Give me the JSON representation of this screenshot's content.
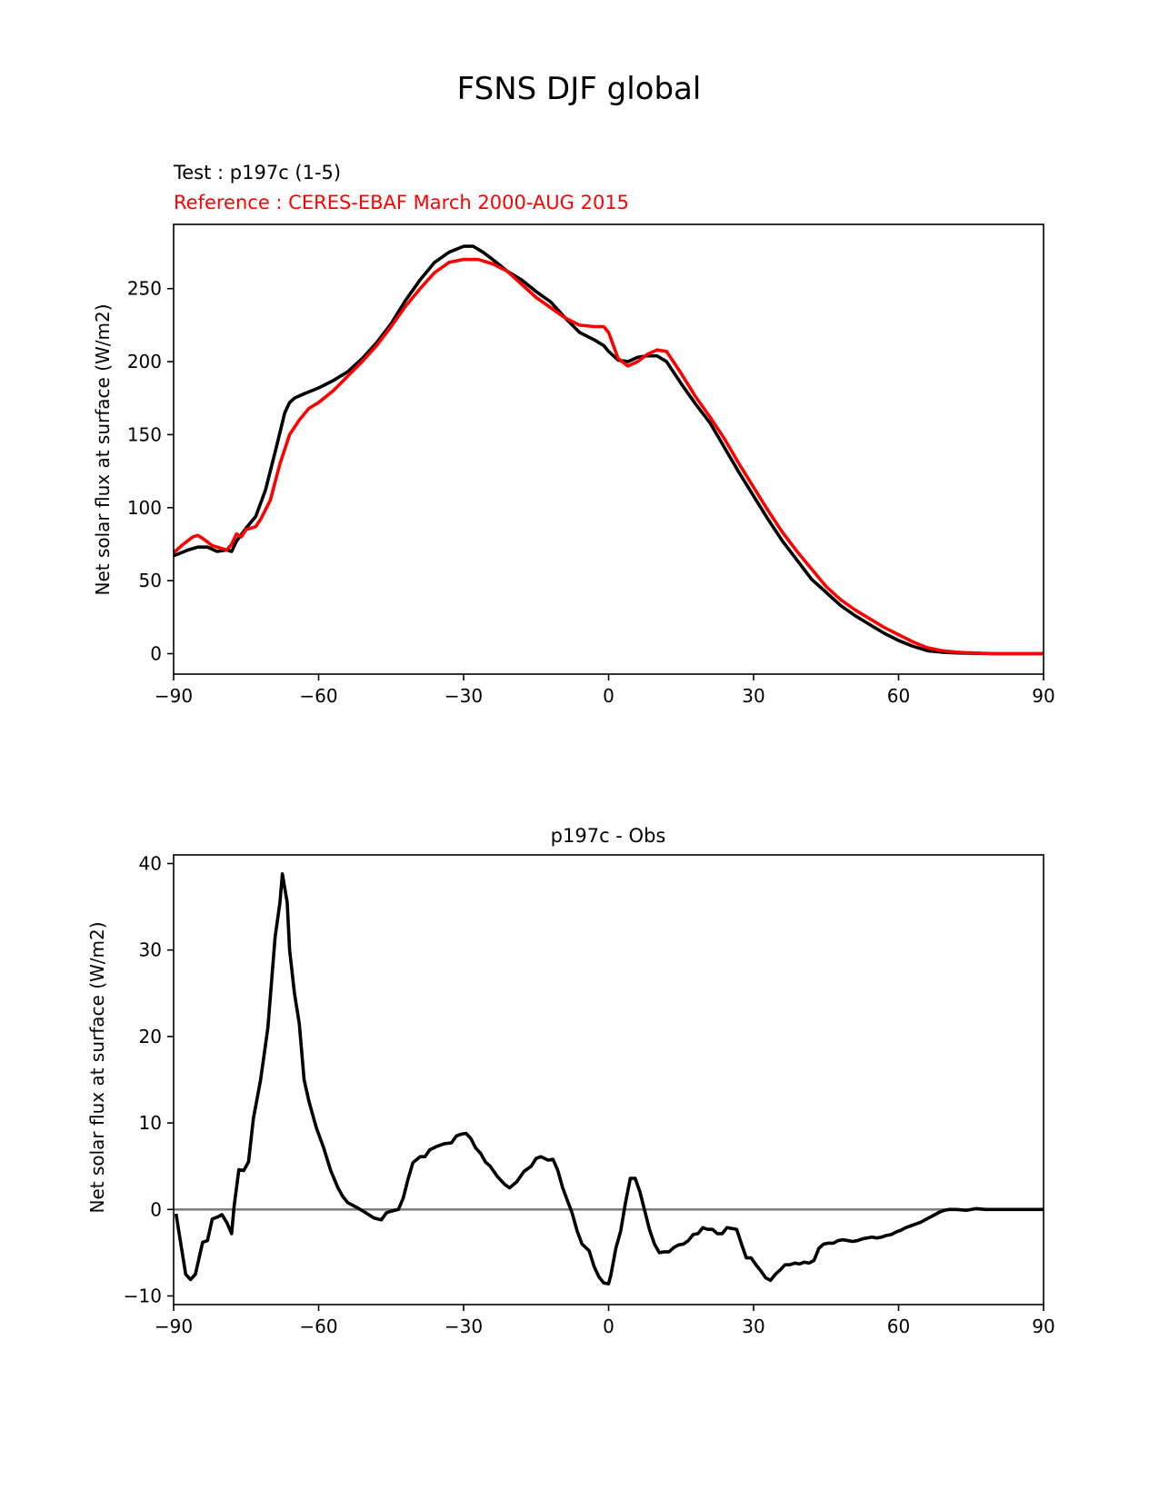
{
  "figure": {
    "suptitle": "FSNS DJF global"
  },
  "colors": {
    "test": "#000000",
    "reference": "#ff0000",
    "zero_line": "#808080",
    "axes": "#000000"
  },
  "chart_data": [
    {
      "type": "line",
      "title_left_1": "Test : p197c (1-5)",
      "title_left_2": "Reference : CERES-EBAF March 2000-AUG 2015",
      "xlabel": "",
      "ylabel": "Net solar flux at surface (W/m2)",
      "xlim": [
        -90,
        90
      ],
      "ylim": [
        -14,
        294
      ],
      "xticks": [
        -90,
        -60,
        -30,
        0,
        30,
        60,
        90
      ],
      "xtick_labels": [
        "−90",
        "−60",
        "−30",
        "0",
        "30",
        "60",
        "90"
      ],
      "yticks": [
        0,
        50,
        100,
        150,
        200,
        250
      ],
      "ytick_labels": [
        "0",
        "50",
        "100",
        "150",
        "200",
        "250"
      ],
      "grid": false,
      "series": [
        {
          "name": "Test : p197c (1-5)",
          "color": "#000000",
          "x": [
            -90,
            -87,
            -85,
            -83,
            -81,
            -79,
            -78,
            -77,
            -75,
            -73,
            -71,
            -69,
            -67,
            -66,
            -65,
            -63,
            -60,
            -57,
            -54,
            -51,
            -48,
            -45,
            -42,
            -39,
            -36,
            -33,
            -30,
            -28,
            -26,
            -24,
            -21,
            -18,
            -15,
            -12,
            -9,
            -6,
            -3,
            -1,
            0,
            2,
            4,
            6,
            8,
            10,
            12,
            15,
            18,
            21,
            24,
            27,
            30,
            33,
            36,
            39,
            42,
            45,
            48,
            51,
            54,
            57,
            60,
            63,
            66,
            69,
            72,
            75,
            80,
            85,
            90
          ],
          "y": [
            67,
            71,
            73,
            73,
            70,
            71,
            70,
            77,
            86,
            94,
            112,
            138,
            165,
            172,
            175,
            178,
            182,
            187,
            193,
            202,
            213,
            226,
            242,
            256,
            268,
            275,
            279,
            279,
            275,
            270,
            262,
            256,
            248,
            241,
            230,
            220,
            215,
            211,
            207,
            201,
            200,
            203,
            204,
            204,
            200,
            185,
            171,
            158,
            141,
            124,
            108,
            92,
            77,
            64,
            51,
            42,
            33,
            26,
            20,
            14,
            9,
            5,
            2,
            1,
            0.5,
            0.3,
            0,
            0,
            0
          ]
        },
        {
          "name": "Reference : CERES-EBAF March 2000-AUG 2015",
          "color": "#ff0000",
          "x": [
            -90,
            -88,
            -86,
            -85,
            -84,
            -82,
            -80,
            -79,
            -78,
            -77,
            -76,
            -75,
            -73,
            -72,
            -70,
            -68,
            -66,
            -64,
            -62,
            -60,
            -57,
            -54,
            -51,
            -48,
            -45,
            -42,
            -39,
            -36,
            -33,
            -30,
            -27,
            -24,
            -21,
            -18,
            -15,
            -12,
            -9,
            -6,
            -3,
            -1,
            0,
            2,
            4,
            6,
            8,
            10,
            12,
            15,
            18,
            21,
            24,
            27,
            30,
            33,
            36,
            39,
            42,
            45,
            48,
            51,
            54,
            57,
            60,
            63,
            66,
            69,
            72,
            75,
            80,
            85,
            90
          ],
          "y": [
            69,
            75,
            80,
            81,
            79,
            74,
            72,
            71,
            75,
            82,
            80,
            85,
            87,
            92,
            105,
            130,
            150,
            160,
            168,
            172,
            180,
            190,
            200,
            211,
            224,
            238,
            250,
            261,
            268,
            270,
            270,
            267,
            262,
            253,
            244,
            237,
            230,
            225,
            224,
            224,
            220,
            202,
            197,
            200,
            205,
            208,
            207,
            192,
            176,
            162,
            147,
            130,
            114,
            98,
            83,
            70,
            58,
            46,
            37,
            30,
            24,
            18,
            13,
            8,
            4,
            2,
            1,
            0.5,
            0,
            0,
            0
          ]
        }
      ]
    },
    {
      "type": "line",
      "title": "p197c - Obs",
      "xlabel": "",
      "ylabel": "Net solar flux at surface (W/m2)",
      "xlim": [
        -90,
        90
      ],
      "ylim": [
        -11,
        41
      ],
      "xticks": [
        -90,
        -60,
        -30,
        0,
        30,
        60,
        90
      ],
      "xtick_labels": [
        "−90",
        "−60",
        "−30",
        "0",
        "30",
        "60",
        "90"
      ],
      "yticks": [
        -10,
        0,
        10,
        20,
        30,
        40
      ],
      "ytick_labels": [
        "−10",
        "0",
        "10",
        "20",
        "30",
        "40"
      ],
      "grid": false,
      "zero_line": true,
      "series": [
        {
          "name": "p197c - Obs",
          "color": "#000000",
          "x": [
            -89.5,
            -88.5,
            -87.5,
            -86.5,
            -85.5,
            -84,
            -83,
            -82,
            -81,
            -80,
            -79,
            -78,
            -77.5,
            -76.5,
            -75.5,
            -74.5,
            -73.5,
            -72,
            -70.5,
            -69,
            -68,
            -67.5,
            -66.5,
            -66,
            -65,
            -64,
            -63,
            -62,
            -60.5,
            -59,
            -57.5,
            -56,
            -55,
            -54,
            -53,
            -52,
            -50.5,
            -48.5,
            -47,
            -46,
            -45,
            -43.5,
            -42.5,
            -41.5,
            -40.5,
            -39,
            -38,
            -37,
            -35.5,
            -34,
            -32.5,
            -31.5,
            -30.5,
            -29.5,
            -28.5,
            -27.5,
            -26.5,
            -25.5,
            -24.5,
            -23,
            -21.5,
            -20.5,
            -19,
            -17.5,
            -16,
            -15,
            -14,
            -12.5,
            -11.5,
            -10.5,
            -9.5,
            -8.5,
            -7.5,
            -6.5,
            -5.5,
            -4,
            -3,
            -2,
            -1,
            0,
            0.5,
            1.5,
            2.5,
            3.5,
            4.5,
            5.5,
            6.5,
            7.5,
            8.5,
            9.5,
            10.5,
            11.5,
            12.5,
            13.5,
            14.5,
            15.5,
            16.5,
            17.5,
            18.5,
            19.5,
            20.5,
            21.5,
            22.5,
            23.5,
            24.5,
            25.5,
            26.5,
            27.5,
            28.5,
            29.5,
            30.5,
            31.5,
            32.5,
            33.5,
            34.5,
            35.5,
            36.5,
            37.5,
            38.5,
            39.5,
            40.5,
            41.5,
            42.5,
            43.5,
            44.5,
            45.5,
            46.5,
            47.5,
            48.5,
            49.5,
            50.5,
            51.5,
            52.5,
            53.5,
            54.5,
            55.5,
            56.5,
            57.5,
            58.5,
            59.5,
            60.5,
            61.5,
            62.5,
            63.5,
            64.5,
            65.5,
            66.5,
            67.5,
            68.5,
            69.5,
            70.5,
            72,
            74,
            76,
            78,
            80,
            85,
            90
          ],
          "y": [
            -0.5,
            -4,
            -7.5,
            -8.1,
            -7.5,
            -3.8,
            -3.6,
            -1.1,
            -0.9,
            -0.6,
            -1.5,
            -2.8,
            0.3,
            4.6,
            4.5,
            5.5,
            10.5,
            15,
            21,
            31.5,
            35.5,
            38.8,
            35.5,
            30,
            25,
            21.5,
            15,
            12.5,
            9.5,
            7.2,
            4.5,
            2.5,
            1.5,
            0.8,
            0.5,
            0.2,
            -0.3,
            -1,
            -1.2,
            -0.4,
            -0.2,
            0,
            1.3,
            3.5,
            5.4,
            6.1,
            6.1,
            6.9,
            7.3,
            7.6,
            7.7,
            8.5,
            8.7,
            8.8,
            8.2,
            7.1,
            6.5,
            5.5,
            5,
            3.8,
            2.9,
            2.5,
            3.2,
            4.4,
            5,
            5.9,
            6.1,
            5.7,
            5.8,
            4.5,
            2.5,
            1,
            -0.5,
            -2.5,
            -4,
            -4.8,
            -6.6,
            -7.8,
            -8.5,
            -8.6,
            -7.5,
            -4.5,
            -2.5,
            0.8,
            3.6,
            3.6,
            2,
            -0.2,
            -2.4,
            -4,
            -5,
            -4.9,
            -4.9,
            -4.4,
            -4.1,
            -4,
            -3.6,
            -2.9,
            -2.8,
            -2.1,
            -2.3,
            -2.3,
            -2.8,
            -2.8,
            -2.1,
            -2.2,
            -2.3,
            -4,
            -5.6,
            -5.6,
            -6.4,
            -7.1,
            -7.9,
            -8.2,
            -7.5,
            -7,
            -6.4,
            -6.4,
            -6.2,
            -6.3,
            -6.1,
            -6.2,
            -5.9,
            -4.5,
            -4,
            -3.9,
            -3.9,
            -3.6,
            -3.5,
            -3.6,
            -3.7,
            -3.6,
            -3.4,
            -3.3,
            -3.2,
            -3.3,
            -3.2,
            -3,
            -2.9,
            -2.6,
            -2.4,
            -2.1,
            -1.9,
            -1.7,
            -1.5,
            -1.2,
            -0.9,
            -0.6,
            -0.3,
            -0.1,
            0,
            0,
            -0.1,
            0.1,
            0,
            0,
            0,
            0
          ]
        }
      ]
    }
  ]
}
